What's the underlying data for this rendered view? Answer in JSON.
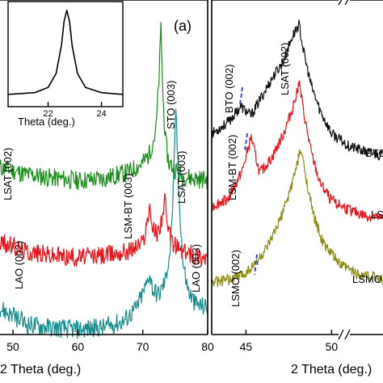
{
  "chart_data": [
    {
      "type": "line",
      "title": "",
      "panel_label": "(a)",
      "xlabel": "2 Theta (deg.)",
      "ylabel": "",
      "xlim": [
        48,
        80
      ],
      "xticks": [
        50,
        60,
        70,
        80
      ],
      "series": [
        {
          "name": "",
          "color": "#1a8c1a",
          "x": [
            48,
            52,
            56,
            60,
            64,
            68,
            70,
            71,
            72,
            72.5,
            72.8,
            73.1,
            73.5,
            74,
            76,
            78,
            80
          ],
          "y": [
            1.9,
            1.82,
            1.78,
            1.75,
            1.77,
            1.85,
            1.95,
            2.05,
            2.3,
            2.9,
            3.5,
            2.7,
            2.2,
            1.95,
            1.8,
            1.77,
            1.76
          ]
        },
        {
          "name": "",
          "color": "#e8141b",
          "x": [
            48,
            52,
            56,
            60,
            64,
            68,
            70,
            70.6,
            71.0,
            71.6,
            72.3,
            73.0,
            73.4,
            73.8,
            74.5,
            76,
            78,
            80
          ],
          "y": [
            1.05,
            0.95,
            0.9,
            0.88,
            0.9,
            0.96,
            1.05,
            1.25,
            1.42,
            1.2,
            1.15,
            1.35,
            1.52,
            1.2,
            1.05,
            0.95,
            0.9,
            0.88
          ]
        },
        {
          "name": "",
          "color": "#168c8c",
          "x": [
            48,
            52,
            56,
            60,
            64,
            67,
            69,
            70.5,
            71.0,
            71.6,
            72.5,
            73.5,
            74.3,
            74.8,
            75.1,
            75.5,
            76.2,
            77,
            78,
            80
          ],
          "y": [
            0.3,
            0.12,
            0.08,
            0.06,
            0.08,
            0.15,
            0.3,
            0.55,
            0.7,
            0.5,
            0.45,
            0.62,
            1.0,
            1.8,
            2.6,
            1.7,
            0.8,
            0.5,
            0.35,
            0.3
          ]
        }
      ],
      "annotations": [
        "STO (003)",
        "LSAT (002)",
        "LSM-BT (003)",
        "LSAT (003)",
        "LAO (002)",
        "LAO (003)"
      ]
    },
    {
      "type": "line",
      "title": "",
      "xlabel": "2 Theta (deg.)",
      "ylabel": "",
      "xlim": [
        43,
        53
      ],
      "xticks": [
        45,
        50
      ],
      "series": [
        {
          "name": "",
          "color": "#111111",
          "x": [
            43,
            44,
            44.7,
            45.3,
            45.9,
            46.5,
            47.2,
            47.7,
            48.1,
            48.4,
            48.8,
            49.3,
            50,
            51,
            52,
            53
          ],
          "y": [
            3.3,
            3.5,
            3.75,
            3.6,
            3.9,
            4.2,
            4.5,
            4.9,
            5.1,
            4.6,
            4.1,
            3.7,
            3.3,
            3.1,
            3.0,
            2.95
          ]
        },
        {
          "name": "",
          "color": "#e8141b",
          "x": [
            43,
            44,
            44.8,
            45.3,
            45.8,
            46.5,
            47.2,
            47.7,
            48.1,
            48.4,
            48.8,
            49.3,
            50,
            51,
            52,
            53
          ],
          "y": [
            2.1,
            2.25,
            2.7,
            3.25,
            2.65,
            2.9,
            3.3,
            3.7,
            4.15,
            3.6,
            3.0,
            2.5,
            2.2,
            2.05,
            1.95,
            1.9
          ]
        },
        {
          "name": "",
          "color": "#8c8c14",
          "x": [
            43,
            44,
            44.9,
            45.5,
            46.2,
            46.8,
            47.4,
            47.9,
            48.2,
            48.5,
            48.9,
            49.5,
            50.5,
            51.5,
            52.5,
            53
          ],
          "y": [
            0.85,
            0.9,
            1.0,
            1.15,
            1.4,
            1.75,
            2.2,
            2.7,
            3.05,
            2.6,
            2.0,
            1.5,
            1.15,
            1.0,
            0.95,
            0.9
          ]
        }
      ],
      "annotations": [
        "BTO (002)",
        "LSAT (002)",
        "LSM-BT (002)",
        "LSMO (002)",
        "BTO",
        "LSM",
        "LSMO"
      ]
    },
    {
      "type": "line",
      "title": "",
      "xlabel": "Theta (deg.)",
      "ylabel": "",
      "xlim": [
        20.5,
        24.8
      ],
      "xticks": [
        22,
        24
      ],
      "series": [
        {
          "name": "",
          "color": "#000000",
          "x": [
            20.5,
            21.5,
            22.0,
            22.3,
            22.5,
            22.6,
            22.7,
            22.8,
            22.9,
            23.1,
            23.4,
            24.0,
            24.8
          ],
          "y": [
            0.04,
            0.06,
            0.12,
            0.28,
            0.6,
            0.88,
            1.0,
            0.88,
            0.6,
            0.28,
            0.12,
            0.06,
            0.04
          ]
        }
      ]
    }
  ]
}
